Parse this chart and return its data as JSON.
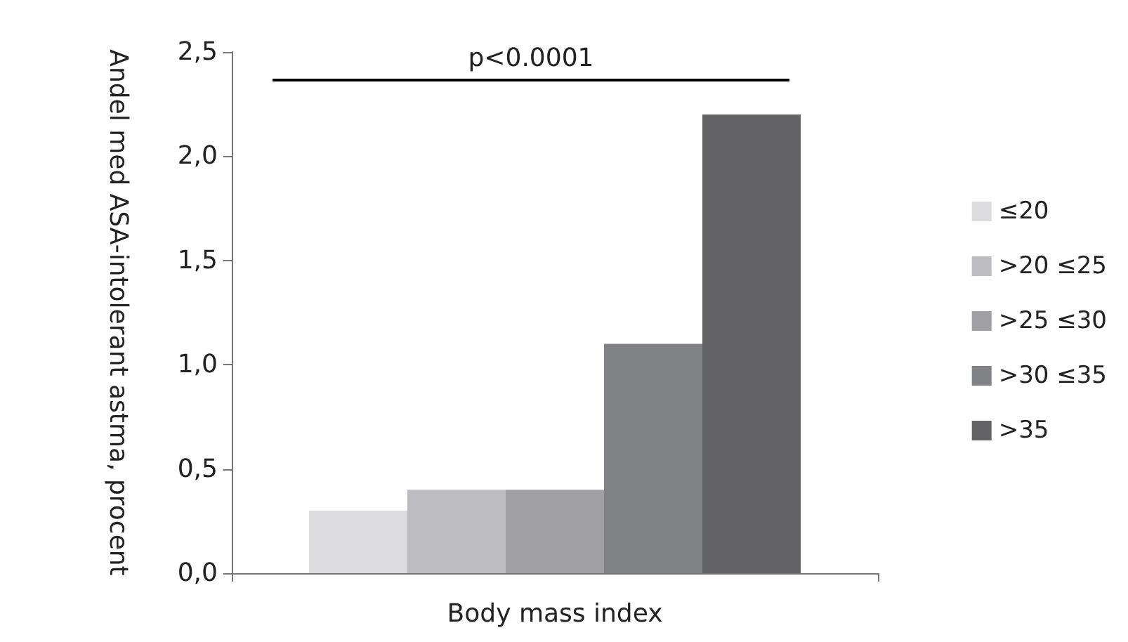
{
  "chart_data": {
    "type": "bar",
    "xlabel": "Body mass index",
    "ylabel": "Andel med ASA-intolerant astma, procent",
    "categories": [
      null
    ],
    "series": [
      {
        "name": "≤20",
        "color": "#dcdcde",
        "values": [
          0.3
        ]
      },
      {
        "name": ">20 ≤25",
        "color": "#bcbcc0",
        "values": [
          0.4
        ]
      },
      {
        "name": ">25 ≤30",
        "color": "#a0a0a4",
        "values": [
          0.4
        ]
      },
      {
        "name": ">30 ≤35",
        "color": "#818285",
        "values": [
          1.1
        ]
      },
      {
        "name": ">35",
        "color": "#636365",
        "values": [
          2.2
        ]
      }
    ],
    "ylim": [
      0,
      2.5
    ],
    "yticks": [
      {
        "value": 0,
        "label": "0,0"
      },
      {
        "value": 0.5,
        "label": "0,5"
      },
      {
        "value": 1,
        "label": "1,0"
      },
      {
        "value": 1.5,
        "label": "1,5"
      },
      {
        "value": 2,
        "label": "2,0"
      },
      {
        "value": 2.5,
        "label": "2,5"
      }
    ],
    "ref_lines": [
      {
        "axis": "y",
        "value": 2.37,
        "label": "p<0.0001",
        "color": "#000000"
      }
    ],
    "grid": false,
    "legend": "right"
  }
}
